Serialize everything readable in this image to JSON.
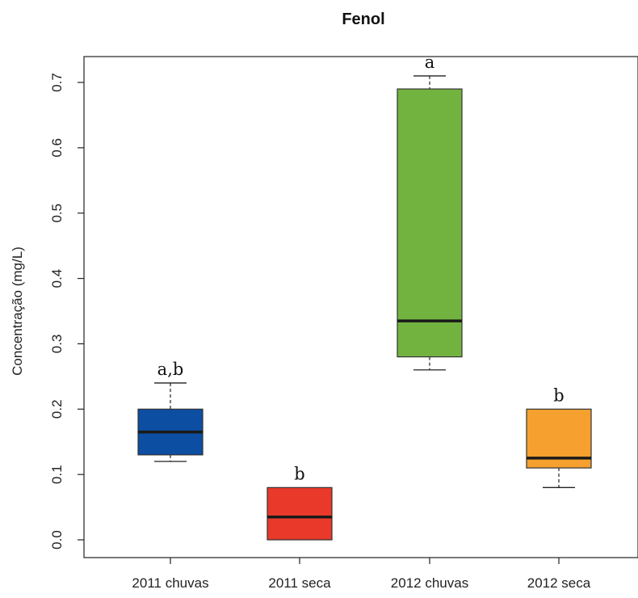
{
  "chart_data": {
    "type": "box",
    "title": "Fenol",
    "xlabel": "",
    "ylabel": "Concentração (mg/L)",
    "ylim": [
      -0.03,
      0.73
    ],
    "yticks": [
      "0.0",
      "0.1",
      "0.2",
      "0.3",
      "0.4",
      "0.5",
      "0.6",
      "0.7"
    ],
    "categories": [
      "2011 chuvas",
      "2011 seca",
      "2012 chuvas",
      "2012 seca"
    ],
    "boxes": [
      {
        "category": "2011 chuvas",
        "min": 0.12,
        "q1": 0.13,
        "median": 0.165,
        "q3": 0.2,
        "max": 0.24,
        "annotation": "a,b",
        "color": "#0b4ea2"
      },
      {
        "category": "2011 seca",
        "min": 0.0,
        "q1": 0.0,
        "median": 0.035,
        "q3": 0.08,
        "max": 0.08,
        "annotation": "b",
        "color": "#e8392a"
      },
      {
        "category": "2012 chuvas",
        "min": 0.26,
        "q1": 0.28,
        "median": 0.335,
        "q3": 0.69,
        "max": 0.71,
        "annotation": "a",
        "color": "#72b340"
      },
      {
        "category": "2012 seca",
        "min": 0.08,
        "q1": 0.11,
        "median": 0.125,
        "q3": 0.2,
        "max": 0.2,
        "annotation": "b",
        "color": "#f5a02f"
      }
    ],
    "grid": false,
    "legend": "none"
  }
}
